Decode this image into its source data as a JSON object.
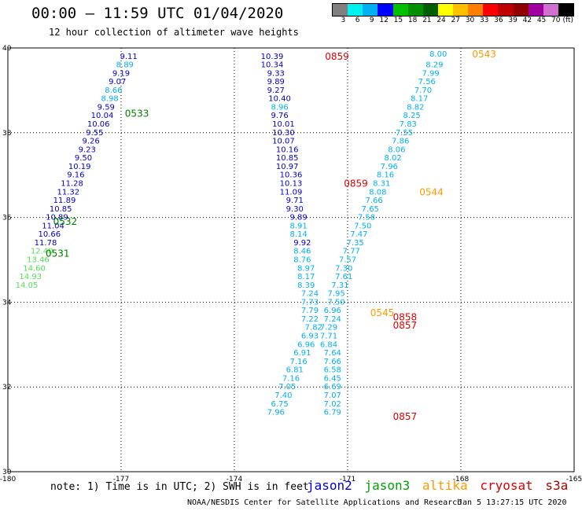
{
  "title": "00:00 – 11:59 UTC 01/04/2020",
  "subtitle": "12 hour collection of altimeter wave heights",
  "color_scale": {
    "colors": [
      "#808080",
      "#00f0f0",
      "#00b0f0",
      "#0000ff",
      "#00c000",
      "#009000",
      "#006000",
      "#ffff00",
      "#ffc000",
      "#ff8000",
      "#ff0000",
      "#c00000",
      "#900000",
      "#a000a0",
      "#d070d0",
      "#000000"
    ],
    "labels": [
      "3",
      "6",
      "9",
      "12",
      "15",
      "18",
      "21",
      "24",
      "27",
      "30",
      "33",
      "36",
      "39",
      "42",
      "45",
      "70",
      "(ft)"
    ]
  },
  "axes": {
    "x_ticks": [
      "-180",
      "-177",
      "-174",
      "-171",
      "-168",
      "-165"
    ],
    "y_ticks": [
      "40",
      "38",
      "36",
      "34",
      "32",
      "30"
    ],
    "lon_range": [
      -180,
      -165
    ],
    "lat_range": [
      30,
      40
    ],
    "grid": true
  },
  "satellites": {
    "jason2": {
      "name": "jason2",
      "color": "#0000cc"
    },
    "jason3": {
      "name": "jason3",
      "color": "#00a000"
    },
    "altika": {
      "name": "altika",
      "color": "#ff9900"
    },
    "cryosat": {
      "name": "cryosat",
      "color": "#dd0000"
    },
    "s3a": {
      "name": "s3a",
      "color": "#aa0000"
    }
  },
  "tracks": [
    {
      "id": "jason3-west",
      "points": [
        {
          "lon": -176.8,
          "lat": 39.8,
          "v": "9.11",
          "c": "#0000cc"
        },
        {
          "lon": -176.9,
          "lat": 39.6,
          "v": "8.89",
          "c": "#00b0f0"
        },
        {
          "lon": -177.0,
          "lat": 39.4,
          "v": "9.19",
          "c": "#0000cc"
        },
        {
          "lon": -177.1,
          "lat": 39.2,
          "v": "9.07",
          "c": "#0000cc"
        },
        {
          "lon": -177.2,
          "lat": 39.0,
          "v": "8.66",
          "c": "#00b0f0"
        },
        {
          "lon": -177.3,
          "lat": 38.8,
          "v": "8.98",
          "c": "#00b0f0"
        },
        {
          "lon": -177.4,
          "lat": 38.6,
          "v": "9.59",
          "c": "#0000cc"
        },
        {
          "lon": -177.5,
          "lat": 38.4,
          "v": "10.04",
          "c": "#0000cc"
        },
        {
          "lon": -177.6,
          "lat": 38.2,
          "v": "10.06",
          "c": "#0000cc"
        },
        {
          "lon": -177.7,
          "lat": 38.0,
          "v": "9.55",
          "c": "#0000cc"
        },
        {
          "lon": -177.8,
          "lat": 37.8,
          "v": "9.26",
          "c": "#0000cc"
        },
        {
          "lon": -177.9,
          "lat": 37.6,
          "v": "9.23",
          "c": "#0000cc"
        },
        {
          "lon": -178.0,
          "lat": 37.4,
          "v": "9.50",
          "c": "#0000cc"
        },
        {
          "lon": -178.1,
          "lat": 37.2,
          "v": "10.19",
          "c": "#0000cc"
        },
        {
          "lon": -178.2,
          "lat": 37.0,
          "v": "9.16",
          "c": "#0000cc"
        },
        {
          "lon": -178.3,
          "lat": 36.8,
          "v": "11.28",
          "c": "#0000cc"
        },
        {
          "lon": -178.4,
          "lat": 36.6,
          "v": "11.32",
          "c": "#0000cc"
        },
        {
          "lon": -178.5,
          "lat": 36.4,
          "v": "11.89",
          "c": "#0000cc"
        },
        {
          "lon": -178.6,
          "lat": 36.2,
          "v": "10.85",
          "c": "#0000cc"
        },
        {
          "lon": -178.7,
          "lat": 36.0,
          "v": "10.89",
          "c": "#0000cc"
        },
        {
          "lon": -178.8,
          "lat": 35.8,
          "v": "11.04",
          "c": "#0000cc"
        },
        {
          "lon": -178.9,
          "lat": 35.6,
          "v": "10.66",
          "c": "#0000cc"
        },
        {
          "lon": -179.0,
          "lat": 35.4,
          "v": "11.78",
          "c": "#0000cc"
        },
        {
          "lon": -179.1,
          "lat": 35.2,
          "v": "12.40",
          "c": "#55dd55"
        },
        {
          "lon": -179.2,
          "lat": 35.0,
          "v": "13.46",
          "c": "#55dd55"
        },
        {
          "lon": -179.3,
          "lat": 34.8,
          "v": "14.60",
          "c": "#55dd55"
        },
        {
          "lon": -179.4,
          "lat": 34.6,
          "v": "14.93",
          "c": "#55dd55"
        },
        {
          "lon": -179.5,
          "lat": 34.4,
          "v": "14.05",
          "c": "#55dd55"
        }
      ],
      "time_labels": [
        {
          "lon": -176.9,
          "lat": 38.45,
          "t": "0533",
          "c": "#008000"
        },
        {
          "lon": -178.8,
          "lat": 35.9,
          "t": "0532",
          "c": "#008000"
        },
        {
          "lon": -179.0,
          "lat": 35.15,
          "t": "0531",
          "c": "#008000"
        }
      ]
    },
    {
      "id": "cryosat-middle",
      "points": [
        {
          "lon": -173.0,
          "lat": 39.8,
          "v": "10.39",
          "c": "#0000cc"
        },
        {
          "lon": -173.0,
          "lat": 39.6,
          "v": "10.34",
          "c": "#0000cc"
        },
        {
          "lon": -172.9,
          "lat": 39.4,
          "v": "9.33",
          "c": "#0000cc"
        },
        {
          "lon": -172.9,
          "lat": 39.2,
          "v": "9.89",
          "c": "#0000cc"
        },
        {
          "lon": -172.9,
          "lat": 39.0,
          "v": "9.27",
          "c": "#0000cc"
        },
        {
          "lon": -172.8,
          "lat": 38.8,
          "v": "10.40",
          "c": "#0000cc"
        },
        {
          "lon": -172.8,
          "lat": 38.6,
          "v": "8.96",
          "c": "#00b0f0"
        },
        {
          "lon": -172.8,
          "lat": 38.4,
          "v": "9.76",
          "c": "#0000cc"
        },
        {
          "lon": -172.7,
          "lat": 38.2,
          "v": "10.01",
          "c": "#0000cc"
        },
        {
          "lon": -172.7,
          "lat": 38.0,
          "v": "10.30",
          "c": "#0000cc"
        },
        {
          "lon": -172.7,
          "lat": 37.8,
          "v": "10.07",
          "c": "#0000cc"
        },
        {
          "lon": -172.6,
          "lat": 37.6,
          "v": "10.16",
          "c": "#0000cc"
        },
        {
          "lon": -172.6,
          "lat": 37.4,
          "v": "10.85",
          "c": "#0000cc"
        },
        {
          "lon": -172.6,
          "lat": 37.2,
          "v": "10.97",
          "c": "#0000cc"
        },
        {
          "lon": -172.5,
          "lat": 37.0,
          "v": "10.36",
          "c": "#0000cc"
        },
        {
          "lon": -172.5,
          "lat": 36.8,
          "v": "10.13",
          "c": "#0000cc"
        },
        {
          "lon": -172.5,
          "lat": 36.6,
          "v": "11.09",
          "c": "#0000cc"
        },
        {
          "lon": -172.4,
          "lat": 36.4,
          "v": "9.71",
          "c": "#0000cc"
        },
        {
          "lon": -172.4,
          "lat": 36.2,
          "v": "9.30",
          "c": "#0000cc"
        },
        {
          "lon": -172.3,
          "lat": 36.0,
          "v": "9.89",
          "c": "#0000cc"
        },
        {
          "lon": -172.3,
          "lat": 35.8,
          "v": "8.91",
          "c": "#00b0f0"
        },
        {
          "lon": -172.3,
          "lat": 35.6,
          "v": "8.14",
          "c": "#00b0f0"
        },
        {
          "lon": -172.2,
          "lat": 35.4,
          "v": "9.92",
          "c": "#0000cc"
        },
        {
          "lon": -172.2,
          "lat": 35.2,
          "v": "8.46",
          "c": "#00b0f0"
        },
        {
          "lon": -172.2,
          "lat": 35.0,
          "v": "8.76",
          "c": "#00b0f0"
        },
        {
          "lon": -172.1,
          "lat": 34.8,
          "v": "8.97",
          "c": "#00b0f0"
        },
        {
          "lon": -172.1,
          "lat": 34.6,
          "v": "8.17",
          "c": "#00b0f0"
        },
        {
          "lon": -172.1,
          "lat": 34.4,
          "v": "8.39",
          "c": "#00b0f0"
        },
        {
          "lon": -172.0,
          "lat": 34.2,
          "v": "7.24",
          "c": "#00b0f0"
        },
        {
          "lon": -172.0,
          "lat": 34.0,
          "v": "7.73",
          "c": "#00b0f0"
        },
        {
          "lon": -172.0,
          "lat": 33.8,
          "v": "7.79",
          "c": "#00b0f0"
        },
        {
          "lon": -172.0,
          "lat": 33.6,
          "v": "7.22",
          "c": "#00b0f0"
        },
        {
          "lon": -171.9,
          "lat": 33.4,
          "v": "7.82",
          "c": "#00b0f0"
        },
        {
          "lon": -172.0,
          "lat": 33.2,
          "v": "6.93",
          "c": "#00b0f0"
        },
        {
          "lon": -172.1,
          "lat": 33.0,
          "v": "6.96",
          "c": "#00b0f0"
        },
        {
          "lon": -172.2,
          "lat": 32.8,
          "v": "6.91",
          "c": "#00b0f0"
        },
        {
          "lon": -172.3,
          "lat": 32.6,
          "v": "7.16",
          "c": "#00b0f0"
        },
        {
          "lon": -172.4,
          "lat": 32.4,
          "v": "6.81",
          "c": "#00b0f0"
        },
        {
          "lon": -172.5,
          "lat": 32.2,
          "v": "7.16",
          "c": "#00b0f0"
        },
        {
          "lon": -172.6,
          "lat": 32.0,
          "v": "7.05",
          "c": "#00b0f0"
        },
        {
          "lon": -172.7,
          "lat": 31.8,
          "v": "7.40",
          "c": "#00b0f0"
        },
        {
          "lon": -172.8,
          "lat": 31.6,
          "v": "6.75",
          "c": "#00b0f0"
        },
        {
          "lon": -172.9,
          "lat": 31.4,
          "v": "7.96",
          "c": "#00b0f0"
        }
      ],
      "time_labels": [
        {
          "lon": -171.6,
          "lat": 39.8,
          "t": "0859",
          "c": "#dd0000"
        },
        {
          "lon": -171.1,
          "lat": 36.8,
          "t": "0859",
          "c": "#dd0000"
        }
      ]
    },
    {
      "id": "altika-east",
      "points": [
        {
          "lon": -168.6,
          "lat": 39.85,
          "v": "8.00",
          "c": "#00b0f0"
        },
        {
          "lon": -168.7,
          "lat": 39.6,
          "v": "8.29",
          "c": "#00b0f0"
        },
        {
          "lon": -168.8,
          "lat": 39.4,
          "v": "7.99",
          "c": "#00b0f0"
        },
        {
          "lon": -168.9,
          "lat": 39.2,
          "v": "7.56",
          "c": "#00b0f0"
        },
        {
          "lon": -169.0,
          "lat": 39.0,
          "v": "7.70",
          "c": "#00b0f0"
        },
        {
          "lon": -169.1,
          "lat": 38.8,
          "v": "8.17",
          "c": "#00b0f0"
        },
        {
          "lon": -169.2,
          "lat": 38.6,
          "v": "8.82",
          "c": "#00b0f0"
        },
        {
          "lon": -169.3,
          "lat": 38.4,
          "v": "8.25",
          "c": "#00b0f0"
        },
        {
          "lon": -169.4,
          "lat": 38.2,
          "v": "7.83",
          "c": "#00b0f0"
        },
        {
          "lon": -169.5,
          "lat": 38.0,
          "v": "7.55",
          "c": "#00b0f0"
        },
        {
          "lon": -169.6,
          "lat": 37.8,
          "v": "7.86",
          "c": "#00b0f0"
        },
        {
          "lon": -169.7,
          "lat": 37.6,
          "v": "8.06",
          "c": "#00b0f0"
        },
        {
          "lon": -169.8,
          "lat": 37.4,
          "v": "8.02",
          "c": "#00b0f0"
        },
        {
          "lon": -169.9,
          "lat": 37.2,
          "v": "7.96",
          "c": "#00b0f0"
        },
        {
          "lon": -170.0,
          "lat": 37.0,
          "v": "8.16",
          "c": "#00b0f0"
        },
        {
          "lon": -170.1,
          "lat": 36.8,
          "v": "8.31",
          "c": "#00b0f0"
        },
        {
          "lon": -170.2,
          "lat": 36.6,
          "v": "8.08",
          "c": "#00b0f0"
        },
        {
          "lon": -170.3,
          "lat": 36.4,
          "v": "7.66",
          "c": "#00b0f0"
        },
        {
          "lon": -170.4,
          "lat": 36.2,
          "v": "7.65",
          "c": "#00b0f0"
        },
        {
          "lon": -170.5,
          "lat": 36.0,
          "v": "7.58",
          "c": "#00b0f0"
        },
        {
          "lon": -170.6,
          "lat": 35.8,
          "v": "7.50",
          "c": "#00b0f0"
        },
        {
          "lon": -170.7,
          "lat": 35.6,
          "v": "7.47",
          "c": "#00b0f0"
        },
        {
          "lon": -170.8,
          "lat": 35.4,
          "v": "7.35",
          "c": "#00b0f0"
        },
        {
          "lon": -170.9,
          "lat": 35.2,
          "v": "7.77",
          "c": "#00b0f0"
        },
        {
          "lon": -171.0,
          "lat": 35.0,
          "v": "7.57",
          "c": "#00b0f0"
        },
        {
          "lon": -171.1,
          "lat": 34.8,
          "v": "7.30",
          "c": "#00b0f0"
        },
        {
          "lon": -171.1,
          "lat": 34.6,
          "v": "7.61",
          "c": "#00b0f0"
        },
        {
          "lon": -171.2,
          "lat": 34.4,
          "v": "7.31",
          "c": "#00b0f0"
        },
        {
          "lon": -171.3,
          "lat": 34.2,
          "v": "7.95",
          "c": "#00b0f0"
        },
        {
          "lon": -171.3,
          "lat": 34.0,
          "v": "7.50",
          "c": "#00b0f0"
        },
        {
          "lon": -171.4,
          "lat": 33.8,
          "v": "6.96",
          "c": "#00b0f0"
        },
        {
          "lon": -171.4,
          "lat": 33.6,
          "v": "7.24",
          "c": "#00b0f0"
        },
        {
          "lon": -171.5,
          "lat": 33.4,
          "v": "7.29",
          "c": "#00b0f0"
        },
        {
          "lon": -171.5,
          "lat": 33.2,
          "v": "7.71",
          "c": "#00b0f0"
        },
        {
          "lon": -171.5,
          "lat": 33.0,
          "v": "6.84",
          "c": "#00b0f0"
        },
        {
          "lon": -171.4,
          "lat": 32.8,
          "v": "7.64",
          "c": "#00b0f0"
        },
        {
          "lon": -171.4,
          "lat": 32.6,
          "v": "7.66",
          "c": "#00b0f0"
        },
        {
          "lon": -171.4,
          "lat": 32.4,
          "v": "6.58",
          "c": "#00b0f0"
        },
        {
          "lon": -171.4,
          "lat": 32.2,
          "v": "6.45",
          "c": "#00b0f0"
        },
        {
          "lon": -171.4,
          "lat": 32.0,
          "v": "6.69",
          "c": "#00b0f0"
        },
        {
          "lon": -171.4,
          "lat": 31.8,
          "v": "7.07",
          "c": "#00b0f0"
        },
        {
          "lon": -171.4,
          "lat": 31.6,
          "v": "7.02",
          "c": "#00b0f0"
        },
        {
          "lon": -171.4,
          "lat": 31.4,
          "v": "6.79",
          "c": "#00b0f0"
        }
      ],
      "time_labels": [
        {
          "lon": -167.7,
          "lat": 39.85,
          "t": "0543",
          "c": "#ff9900"
        },
        {
          "lon": -169.1,
          "lat": 36.6,
          "t": "0544",
          "c": "#ff9900"
        },
        {
          "lon": -170.4,
          "lat": 33.75,
          "t": "0545",
          "c": "#ff9900"
        },
        {
          "lon": -169.8,
          "lat": 33.65,
          "t": "0858",
          "c": "#dd0000"
        },
        {
          "lon": -169.8,
          "lat": 33.45,
          "t": "0857",
          "c": "#dd0000"
        },
        {
          "lon": -169.8,
          "lat": 31.3,
          "t": "0857",
          "c": "#dd0000"
        }
      ]
    }
  ],
  "note": "note: 1) Time is in UTC; 2) SWH is in feet",
  "footer_left": "NOAA/NESDIS Center for Satellite Applications and Research",
  "footer_right": "Jan  5 13:27:15 UTC 2020"
}
